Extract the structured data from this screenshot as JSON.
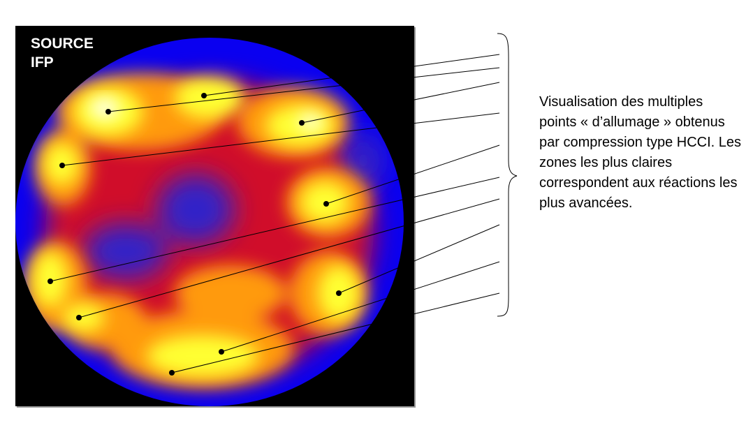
{
  "image": {
    "label_line1": "SOURCE",
    "label_line2": "IFP",
    "colors": {
      "background": "#000000",
      "low": "#0000ff",
      "mid": "#e0102a",
      "high": "#ffff40",
      "peak": "#ffffe0"
    }
  },
  "caption": "Visualisation des multiples points « d’allumage » obtenus par compression type HCCI. Les zones les plus claires correspondent aux réactions les plus avancées.",
  "ignition_point_count": 10
}
